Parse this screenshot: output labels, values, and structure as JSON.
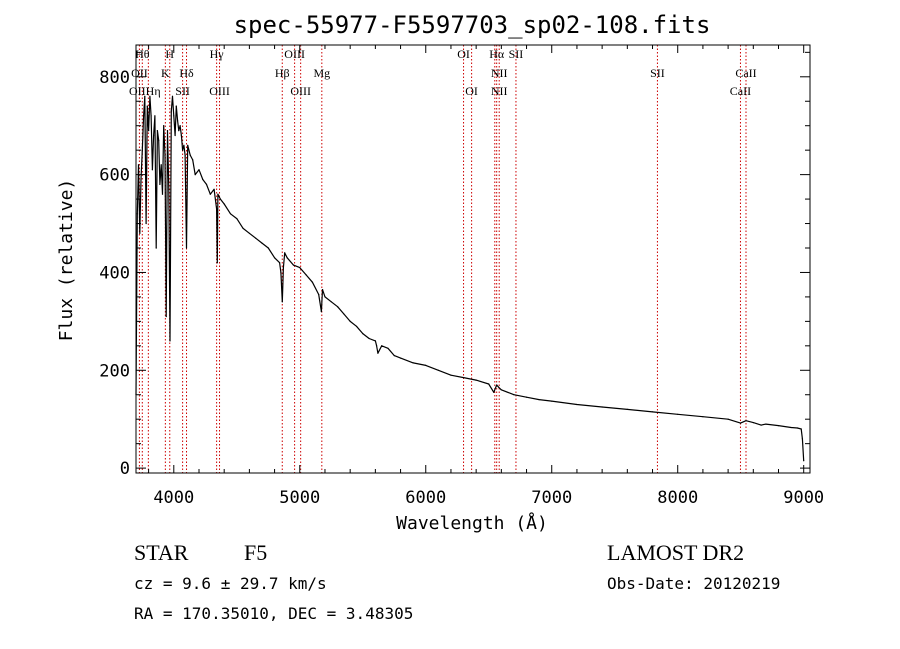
{
  "chart_data": {
    "type": "line",
    "title": "spec-55977-F5597703_sp02-108.fits",
    "xlabel": "Wavelength (Å)",
    "ylabel": "Flux (relative)",
    "xlim": [
      3700,
      9050
    ],
    "ylim": [
      -10,
      865
    ],
    "xticks": [
      4000,
      5000,
      6000,
      7000,
      8000,
      9000
    ],
    "yticks": [
      0,
      200,
      400,
      600,
      800
    ],
    "grid": false,
    "series": [
      {
        "color": "#000000",
        "x": [
          3700,
          3710,
          3720,
          3730,
          3740,
          3750,
          3760,
          3770,
          3780,
          3790,
          3800,
          3810,
          3820,
          3830,
          3840,
          3850,
          3860,
          3870,
          3880,
          3890,
          3900,
          3910,
          3920,
          3930,
          3940,
          3950,
          3960,
          3970,
          3980,
          3990,
          4000,
          4010,
          4020,
          4030,
          4040,
          4050,
          4060,
          4070,
          4080,
          4090,
          4101,
          4110,
          4130,
          4150,
          4170,
          4200,
          4230,
          4260,
          4290,
          4320,
          4340,
          4345,
          4350,
          4370,
          4400,
          4450,
          4500,
          4550,
          4600,
          4650,
          4700,
          4750,
          4800,
          4840,
          4850,
          4861,
          4870,
          4880,
          4900,
          4950,
          5000,
          5050,
          5100,
          5150,
          5172,
          5180,
          5200,
          5250,
          5300,
          5350,
          5400,
          5450,
          5500,
          5550,
          5600,
          5610,
          5620,
          5650,
          5700,
          5750,
          5800,
          5900,
          6000,
          6100,
          6200,
          6300,
          6400,
          6500,
          6540,
          6563,
          6580,
          6600,
          6700,
          6800,
          6900,
          7000,
          7200,
          7400,
          7600,
          7800,
          8000,
          8200,
          8400,
          8498,
          8542,
          8600,
          8662,
          8700,
          8800,
          8900,
          8950,
          8980,
          8990,
          9000
        ],
        "y": [
          150,
          520,
          620,
          480,
          590,
          650,
          720,
          760,
          500,
          740,
          690,
          760,
          720,
          610,
          680,
          720,
          450,
          690,
          670,
          580,
          620,
          560,
          700,
          640,
          310,
          690,
          570,
          260,
          730,
          760,
          720,
          680,
          740,
          710,
          690,
          700,
          680,
          650,
          660,
          640,
          450,
          660,
          640,
          630,
          600,
          610,
          590,
          580,
          560,
          570,
          530,
          420,
          560,
          550,
          540,
          520,
          510,
          490,
          480,
          470,
          460,
          450,
          430,
          420,
          400,
          340,
          410,
          440,
          430,
          415,
          410,
          395,
          380,
          355,
          320,
          365,
          350,
          340,
          330,
          315,
          300,
          290,
          275,
          265,
          260,
          250,
          235,
          250,
          245,
          230,
          225,
          215,
          210,
          200,
          190,
          185,
          180,
          172,
          155,
          170,
          165,
          160,
          150,
          145,
          140,
          137,
          130,
          125,
          120,
          115,
          110,
          105,
          100,
          92,
          97,
          93,
          88,
          90,
          87,
          83,
          82,
          80,
          60,
          15
        ]
      }
    ],
    "lines": [
      {
        "wl": 3727,
        "top": "OII",
        "bot": "OII"
      },
      {
        "wl": 3750,
        "top": "Hθ",
        "bot": ""
      },
      {
        "wl": 3798,
        "top": "Hη",
        "bot": ""
      },
      {
        "wl": 3933,
        "top": "K",
        "bot": ""
      },
      {
        "wl": 3968,
        "top": "H",
        "bot": ""
      },
      {
        "wl": 4070,
        "top": "SII",
        "bot": ""
      },
      {
        "wl": 4101,
        "top": "Hδ",
        "bot": ""
      },
      {
        "wl": 4340,
        "top": "Hγ",
        "bot": ""
      },
      {
        "wl": 4363,
        "top": "OIII",
        "bot": ""
      },
      {
        "wl": 4861,
        "top": "Hβ",
        "bot": ""
      },
      {
        "wl": 4959,
        "top": "OIII",
        "bot": ""
      },
      {
        "wl": 5007,
        "top": "OIII",
        "bot": ""
      },
      {
        "wl": 5175,
        "top": "Mg",
        "bot": ""
      },
      {
        "wl": 6300,
        "top": "OI",
        "bot": ""
      },
      {
        "wl": 6364,
        "top": "OI",
        "bot": ""
      },
      {
        "wl": 6548,
        "top": "NII",
        "bot": ""
      },
      {
        "wl": 6563,
        "top": "Hα",
        "bot": ""
      },
      {
        "wl": 6583,
        "top": "NII",
        "bot": ""
      },
      {
        "wl": 6716,
        "top": "SII",
        "bot": ""
      },
      {
        "wl": 7839,
        "top": "SII",
        "bot": ""
      },
      {
        "wl": 8498,
        "top": "CaII",
        "bot": ""
      },
      {
        "wl": 8542,
        "top": "CaII",
        "bot": ""
      }
    ],
    "annotations": {
      "line_label_texts": [
        {
          "text": "Hθ",
          "wl": 3750
        },
        {
          "text": "H",
          "wl": 3968
        },
        {
          "text": "Hγ",
          "wl": 4340
        },
        {
          "text": "OIII",
          "wl": 4959
        },
        {
          "text": "OI",
          "wl": 6300
        },
        {
          "text": "Hα",
          "wl": 6563
        },
        {
          "text": "SII",
          "wl": 6716
        },
        {
          "text": "OII",
          "wl": 3727
        },
        {
          "text": "K",
          "wl": 3933
        },
        {
          "text": "Hδ",
          "wl": 4101
        },
        {
          "text": "Hβ",
          "wl": 4861
        },
        {
          "text": "Mg",
          "wl": 5175
        },
        {
          "text": "NII",
          "wl": 6583
        },
        {
          "text": "SII",
          "wl": 7839
        },
        {
          "text": "CaII",
          "wl": 8542
        },
        {
          "text": "OIIHη",
          "wl": 3770
        },
        {
          "text": "SII",
          "wl": 4070
        },
        {
          "text": "OIII",
          "wl": 4363
        },
        {
          "text": "OIII",
          "wl": 5007
        },
        {
          "text": "OI",
          "wl": 6364
        },
        {
          "text": "NII",
          "wl": 6583
        },
        {
          "text": "CaII",
          "wl": 8498
        }
      ]
    },
    "line_marker_color": "#cc0000"
  },
  "info": {
    "class": "STAR",
    "subclass": "F5",
    "cz": "cz = 9.6 ± 29.7 km/s",
    "radec": "RA = 170.35010, DEC =    3.48305",
    "survey": "LAMOST DR2",
    "obsdate": "Obs-Date: 20120219"
  }
}
